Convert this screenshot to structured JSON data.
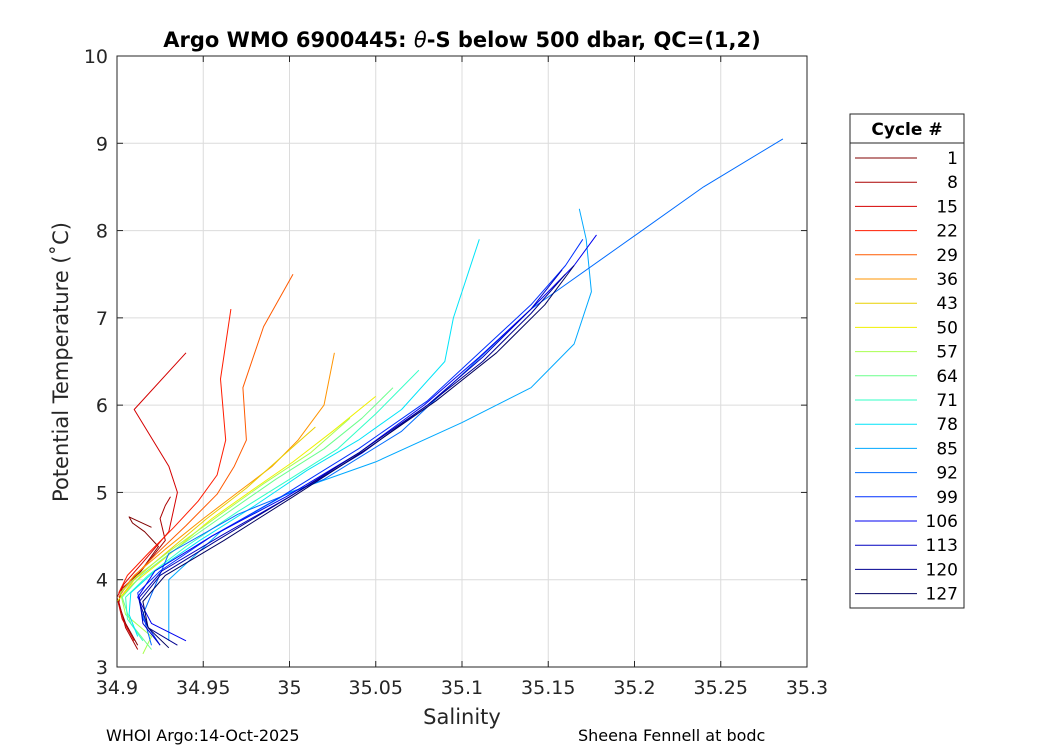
{
  "chart_data": {
    "type": "line",
    "title_prefix": "Argo WMO 6900445: ",
    "title_theta": "θ",
    "title_suffix": "-S below 500 dbar,  QC=(1,2)",
    "xlabel": "Salinity",
    "ylabel": "Potential Temperature (˚C)",
    "xlim": [
      34.9,
      35.3
    ],
    "ylim": [
      3,
      10
    ],
    "xticks": [
      34.9,
      34.95,
      35,
      35.05,
      35.1,
      35.15,
      35.2,
      35.25,
      35.3
    ],
    "xtick_labels": [
      "34.9",
      "34.95",
      "35",
      "35.05",
      "35.1",
      "35.15",
      "35.2",
      "35.25",
      "35.3"
    ],
    "yticks": [
      3,
      4,
      5,
      6,
      7,
      8,
      9,
      10
    ],
    "ytick_labels": [
      "3",
      "4",
      "5",
      "6",
      "7",
      "8",
      "9",
      "10"
    ],
    "grid": true,
    "legend": {
      "title": "Cycle #",
      "placement": "outside-right",
      "entries": [
        "1",
        "8",
        "15",
        "22",
        "29",
        "36",
        "43",
        "50",
        "57",
        "64",
        "71",
        "78",
        "85",
        "92",
        "99",
        "106",
        "113",
        "120",
        "127"
      ],
      "colors": [
        "#800000",
        "#aa0000",
        "#d40000",
        "#ff1c00",
        "#ff5a00",
        "#ff9400",
        "#e8d000",
        "#f0f000",
        "#a8ff50",
        "#6aff8c",
        "#30ffc6",
        "#00e4f8",
        "#00a8ff",
        "#006cff",
        "#0030ff",
        "#0000f0",
        "#0000c0",
        "#000090",
        "#000060"
      ]
    },
    "series": [
      {
        "name": "1",
        "color": "#800000",
        "x": [
          34.912,
          34.905,
          34.901,
          34.902,
          34.912,
          34.924,
          34.916,
          34.909,
          34.907,
          34.92
        ],
        "y": [
          3.25,
          3.5,
          3.72,
          3.85,
          4.05,
          4.38,
          4.55,
          4.65,
          4.72,
          4.6
        ]
      },
      {
        "name": "8",
        "color": "#aa0000",
        "x": [
          34.912,
          34.905,
          34.901,
          34.903,
          34.914,
          34.928,
          34.925,
          34.928,
          34.931
        ],
        "y": [
          3.2,
          3.45,
          3.75,
          3.9,
          4.1,
          4.45,
          4.7,
          4.85,
          4.95
        ]
      },
      {
        "name": "15",
        "color": "#d40000",
        "x": [
          34.91,
          34.903,
          34.9,
          34.904,
          34.915,
          34.93,
          34.935,
          34.93,
          34.91,
          34.94
        ],
        "y": [
          3.3,
          3.55,
          3.8,
          3.95,
          4.2,
          4.55,
          5.0,
          5.3,
          5.95,
          6.6
        ]
      },
      {
        "name": "22",
        "color": "#ff1c00",
        "x": [
          34.901,
          34.906,
          34.918,
          34.933,
          34.947,
          34.958,
          34.963,
          34.96,
          34.966
        ],
        "y": [
          3.85,
          4.05,
          4.3,
          4.6,
          4.9,
          5.2,
          5.6,
          6.3,
          7.1
        ]
      },
      {
        "name": "29",
        "color": "#ff5a00",
        "x": [
          34.901,
          34.908,
          34.922,
          34.94,
          34.958,
          34.968,
          34.975,
          34.973,
          34.985,
          35.002
        ],
        "y": [
          3.8,
          4.0,
          4.28,
          4.62,
          4.98,
          5.3,
          5.6,
          6.2,
          6.9,
          7.5
        ]
      },
      {
        "name": "36",
        "color": "#ff9400",
        "x": [
          34.902,
          34.91,
          34.928,
          34.95,
          34.97,
          34.99,
          35.005,
          35.02,
          35.026
        ],
        "y": [
          3.85,
          4.05,
          4.35,
          4.7,
          5.0,
          5.3,
          5.6,
          6.0,
          6.6
        ]
      },
      {
        "name": "43",
        "color": "#e8d000",
        "x": [
          34.902,
          34.91,
          34.928,
          34.952,
          34.975,
          34.995,
          35.015
        ],
        "y": [
          3.8,
          4.0,
          4.3,
          4.7,
          5.05,
          5.4,
          5.75
        ]
      },
      {
        "name": "50",
        "color": "#f0f000",
        "x": [
          34.9,
          34.909,
          34.928,
          34.955,
          34.98,
          35.002,
          35.025,
          35.05
        ],
        "y": [
          3.75,
          3.95,
          4.25,
          4.7,
          5.05,
          5.35,
          5.7,
          6.1
        ]
      },
      {
        "name": "57",
        "color": "#a8ff50",
        "x": [
          34.915,
          34.92,
          34.905,
          34.902,
          34.912,
          34.932,
          34.96,
          34.985,
          35.012,
          35.035
        ],
        "y": [
          3.15,
          3.35,
          3.6,
          3.85,
          4.05,
          4.35,
          4.75,
          5.1,
          5.45,
          5.85
        ]
      },
      {
        "name": "64",
        "color": "#6aff8c",
        "x": [
          34.92,
          34.908,
          34.903,
          34.914,
          34.936,
          34.965,
          34.992,
          35.02,
          35.042,
          35.06
        ],
        "y": [
          3.2,
          3.5,
          3.8,
          4.05,
          4.38,
          4.78,
          5.15,
          5.5,
          5.85,
          6.2
        ]
      },
      {
        "name": "71",
        "color": "#30ffc6",
        "x": [
          34.915,
          34.906,
          34.905,
          34.918,
          34.94,
          34.97,
          35.0,
          35.028,
          35.05,
          35.075
        ],
        "y": [
          3.3,
          3.55,
          3.8,
          4.05,
          4.38,
          4.78,
          5.15,
          5.5,
          5.9,
          6.4
        ]
      },
      {
        "name": "78",
        "color": "#00e4f8",
        "x": [
          34.912,
          34.907,
          34.908,
          34.922,
          34.948,
          34.98,
          35.01,
          35.04,
          35.065,
          35.09,
          35.095,
          35.11
        ],
        "y": [
          3.35,
          3.6,
          3.85,
          4.1,
          4.45,
          4.85,
          5.25,
          5.6,
          5.95,
          6.5,
          7.0,
          7.9
        ]
      },
      {
        "name": "85",
        "color": "#00a8ff",
        "x": [
          34.93,
          34.93,
          34.96,
          35.0,
          35.05,
          35.1,
          35.14,
          35.165,
          35.175,
          35.172,
          35.168
        ],
        "y": [
          3.3,
          4.0,
          4.55,
          5.0,
          5.35,
          5.8,
          6.2,
          6.7,
          7.3,
          7.9,
          8.25
        ]
      },
      {
        "name": "92",
        "color": "#006cff",
        "x": [
          34.92,
          34.915,
          34.93,
          34.97,
          35.02,
          35.065,
          35.1,
          35.14,
          35.19,
          35.24,
          35.286
        ],
        "y": [
          3.25,
          3.6,
          4.3,
          4.75,
          5.15,
          5.7,
          6.35,
          7.1,
          7.8,
          8.5,
          9.05
        ]
      },
      {
        "name": "99",
        "color": "#0030ff",
        "x": [
          34.925,
          34.915,
          34.912,
          34.925,
          34.955,
          34.995,
          35.04,
          35.08,
          35.11,
          35.14,
          35.16,
          35.17
        ],
        "y": [
          3.25,
          3.55,
          3.85,
          4.1,
          4.5,
          4.95,
          5.5,
          6.05,
          6.6,
          7.15,
          7.6,
          7.9
        ]
      },
      {
        "name": "106",
        "color": "#0000f0",
        "x": [
          34.94,
          34.92,
          34.912,
          34.922,
          34.955,
          34.998,
          35.04,
          35.078,
          35.11,
          35.14,
          35.165,
          35.178
        ],
        "y": [
          3.3,
          3.5,
          3.8,
          4.1,
          4.5,
          4.95,
          5.45,
          6.0,
          6.55,
          7.1,
          7.6,
          7.95
        ]
      },
      {
        "name": "113",
        "color": "#0000c0",
        "x": [
          34.925,
          34.915,
          34.913,
          34.926,
          34.96,
          35.0,
          35.042,
          35.08,
          35.112,
          35.14,
          35.158
        ],
        "y": [
          3.25,
          3.5,
          3.8,
          4.1,
          4.5,
          4.95,
          5.45,
          6.0,
          6.55,
          7.1,
          7.55
        ]
      },
      {
        "name": "120",
        "color": "#000090",
        "x": [
          34.935,
          34.918,
          34.913,
          34.925,
          34.958,
          35.0,
          35.04,
          35.08,
          35.112,
          35.14,
          35.16
        ],
        "y": [
          3.25,
          3.45,
          3.75,
          4.05,
          4.45,
          4.95,
          5.45,
          6.0,
          6.5,
          7.05,
          7.5
        ]
      },
      {
        "name": "127",
        "color": "#000060",
        "x": [
          34.93,
          34.918,
          34.915,
          34.928,
          34.962,
          35.002,
          35.045,
          35.085,
          35.12,
          35.148,
          35.165
        ],
        "y": [
          3.22,
          3.45,
          3.75,
          4.05,
          4.45,
          4.95,
          5.5,
          6.05,
          6.6,
          7.15,
          7.6
        ]
      }
    ]
  },
  "footer": {
    "left": "WHOI Argo:14-Oct-2025",
    "right": "Sheena Fennell at bodc"
  }
}
